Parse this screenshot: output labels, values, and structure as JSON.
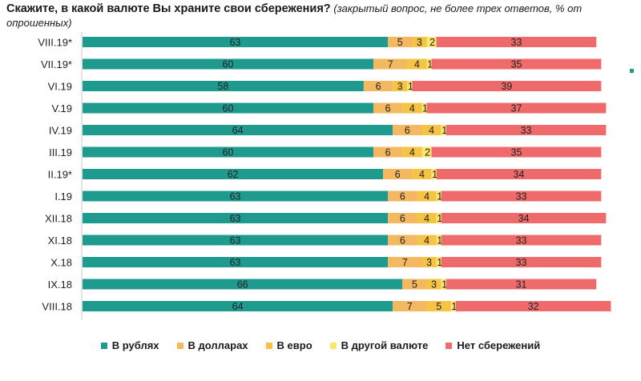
{
  "title": {
    "main": "Скажите, в какой валюте Вы храните свои сбережения?",
    "sub": "(закрытый вопрос, не более трех ответов, % от опрошенных)"
  },
  "chart_data": {
    "type": "bar",
    "orientation": "horizontal",
    "stacked": true,
    "categories": [
      "VIII.19*",
      "VII.19*",
      "VI.19",
      "V.19",
      "IV.19",
      "III.19",
      "II.19*",
      "I.19",
      "XII.18",
      "XI.18",
      "X.18",
      "IX.18",
      "VIII.18"
    ],
    "series": [
      {
        "name": "В рублях",
        "color": "#1f9a8f",
        "values": [
          63,
          60,
          58,
          60,
          64,
          60,
          62,
          63,
          63,
          63,
          63,
          66,
          64
        ]
      },
      {
        "name": "В долларах",
        "color": "#f4b860",
        "values": [
          5,
          7,
          6,
          6,
          6,
          6,
          6,
          6,
          6,
          6,
          7,
          5,
          7
        ]
      },
      {
        "name": "В евро",
        "color": "#f6c445",
        "values": [
          3,
          4,
          3,
          4,
          4,
          4,
          4,
          4,
          4,
          4,
          3,
          3,
          5
        ]
      },
      {
        "name": "В другой валюте",
        "color": "#fbe66e",
        "values": [
          2,
          1,
          1,
          1,
          1,
          2,
          1,
          1,
          1,
          1,
          1,
          1,
          1
        ]
      },
      {
        "name": "Нет сбережений",
        "color": "#ef6b6b",
        "values": [
          33,
          35,
          39,
          37,
          33,
          35,
          34,
          33,
          34,
          33,
          33,
          31,
          32
        ]
      }
    ]
  },
  "colors": {
    "decor_dot": "#1f9a8f"
  }
}
